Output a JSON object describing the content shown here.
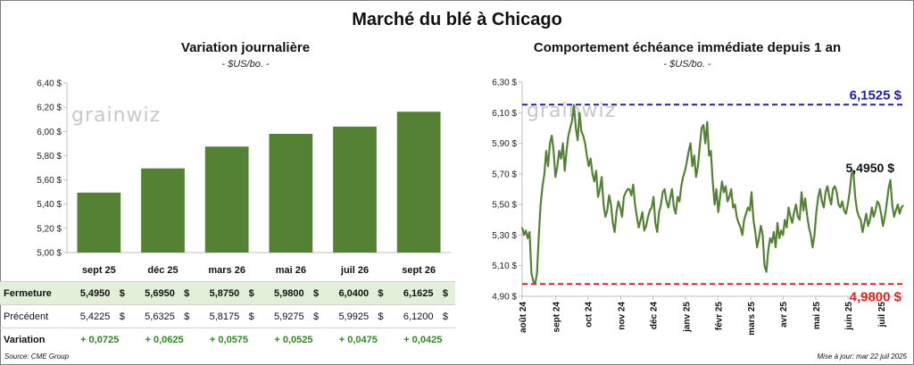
{
  "title": "Marché du blé à Chicago",
  "watermark": "grainwiz",
  "source": "Source: CME Group",
  "update": "Mise à jour: mar 22 juil 2025",
  "colors": {
    "bar": "#548235",
    "line": "#548235",
    "high": "#2020a8",
    "low": "#e02020",
    "current": "#111111"
  },
  "chart_data": [
    {
      "type": "bar",
      "title": "Variation journalière",
      "unit": "- $US/bo. -",
      "categories": [
        "sept 25",
        "déc 25",
        "mars 26",
        "mai 26",
        "juil 26",
        "sept 26"
      ],
      "values": [
        5.495,
        5.695,
        5.875,
        5.98,
        6.04,
        6.1625
      ],
      "ylim": [
        5.0,
        6.4
      ],
      "yticks": [
        5.0,
        5.2,
        5.4,
        5.6,
        5.8,
        6.0,
        6.2,
        6.4
      ],
      "ytick_labels": [
        "5,00 $",
        "5,20 $",
        "5,40 $",
        "5,60 $",
        "5,80 $",
        "6,00 $",
        "6,20 $",
        "6,40 $"
      ],
      "grid": false,
      "table": {
        "close_label": "Fermeture",
        "prev_label": "Précédent",
        "var_label": "Variation",
        "close": [
          "5,4950",
          "5,6950",
          "5,8750",
          "5,9800",
          "6,0400",
          "6,1625"
        ],
        "prev": [
          "5,4225",
          "5,6325",
          "5,8175",
          "5,9275",
          "5,9925",
          "6,1200"
        ],
        "variation": [
          "+ 0,0725",
          "+ 0,0625",
          "+ 0,0575",
          "+ 0,0525",
          "+ 0,0475",
          "+ 0,0425"
        ],
        "currency": "$"
      }
    },
    {
      "type": "line",
      "title": "Comportement échéance immédiate depuis 1 an",
      "unit": "- $US/bo. -",
      "ylim": [
        4.9,
        6.3
      ],
      "yticks": [
        4.9,
        5.1,
        5.3,
        5.5,
        5.7,
        5.9,
        6.1,
        6.3
      ],
      "ytick_labels": [
        "4,90 $",
        "5,10 $",
        "5,30 $",
        "5,50 $",
        "5,70 $",
        "5,90 $",
        "6,10 $",
        "6,30 $"
      ],
      "x_labels": [
        "août 24",
        "sept 24",
        "oct 24",
        "nov 24",
        "déc 24",
        "janv 25",
        "févr 25",
        "mars 25",
        "avr 25",
        "mai 25",
        "juin 25",
        "juil 25"
      ],
      "x_range": [
        0,
        51
      ],
      "x_label_positions": [
        0,
        4.5,
        8.8,
        13.2,
        17.5,
        21.9,
        26.2,
        30.6,
        34.9,
        39.3,
        43.6,
        48
      ],
      "high": 6.1525,
      "high_label": "6,1525 $",
      "low": 4.98,
      "low_label": "4,9800 $",
      "current": 5.495,
      "current_label": "5,4950 $",
      "grid": false,
      "series": [
        {
          "values": [
            5.35,
            5.3,
            5.33,
            5.28,
            5.32,
            5.05,
            5.0,
            4.98,
            5.05,
            5.3,
            5.5,
            5.62,
            5.7,
            5.85,
            5.75,
            5.9,
            5.95,
            5.85,
            5.68,
            5.75,
            5.85,
            5.8,
            5.9,
            5.72,
            5.85,
            5.95,
            6.0,
            6.05,
            6.15,
            6.0,
            5.92,
            6.1,
            5.98,
            5.95,
            5.9,
            5.82,
            5.75,
            5.8,
            5.7,
            5.65,
            5.72,
            5.55,
            5.6,
            5.68,
            5.5,
            5.42,
            5.46,
            5.56,
            5.5,
            5.38,
            5.32,
            5.45,
            5.52,
            5.48,
            5.42,
            5.55,
            5.58,
            5.6,
            5.6,
            5.56,
            5.63,
            5.5,
            5.42,
            5.35,
            5.4,
            5.45,
            5.33,
            5.36,
            5.42,
            5.46,
            5.48,
            5.55,
            5.38,
            5.32,
            5.45,
            5.5,
            5.58,
            5.6,
            5.52,
            5.48,
            5.54,
            5.6,
            5.48,
            5.44,
            5.55,
            5.52,
            5.62,
            5.68,
            5.72,
            5.78,
            5.85,
            5.9,
            5.75,
            5.82,
            5.68,
            5.75,
            5.88,
            6.0,
            6.02,
            5.9,
            6.04,
            5.82,
            5.85,
            5.65,
            5.5,
            5.6,
            5.45,
            5.55,
            5.65,
            5.58,
            5.62,
            5.52,
            5.55,
            5.6,
            5.48,
            5.5,
            5.42,
            5.38,
            5.35,
            5.3,
            5.4,
            5.44,
            5.48,
            5.46,
            5.58,
            5.4,
            5.32,
            5.22,
            5.28,
            5.36,
            5.3,
            5.1,
            5.06,
            5.2,
            5.28,
            5.25,
            5.32,
            5.22,
            5.38,
            5.28,
            5.33,
            5.3,
            5.4,
            5.35,
            5.48,
            5.42,
            5.38,
            5.45,
            5.5,
            5.42,
            5.4,
            5.58,
            5.46,
            5.54,
            5.43,
            5.35,
            5.3,
            5.22,
            5.3,
            5.45,
            5.55,
            5.6,
            5.52,
            5.48,
            5.58,
            5.62,
            5.55,
            5.5,
            5.6,
            5.62,
            5.58,
            5.5,
            5.48,
            5.52,
            5.46,
            5.44,
            5.5,
            5.58,
            5.7,
            5.72,
            5.55,
            5.46,
            5.42,
            5.4,
            5.32,
            5.38,
            5.44,
            5.36,
            5.4,
            5.48,
            5.42,
            5.46,
            5.52,
            5.5,
            5.44,
            5.36,
            5.42,
            5.5,
            5.6,
            5.66,
            5.5,
            5.42,
            5.46,
            5.5,
            5.44,
            5.48,
            5.495
          ]
        }
      ]
    }
  ],
  "table_currency_suffix": "$"
}
